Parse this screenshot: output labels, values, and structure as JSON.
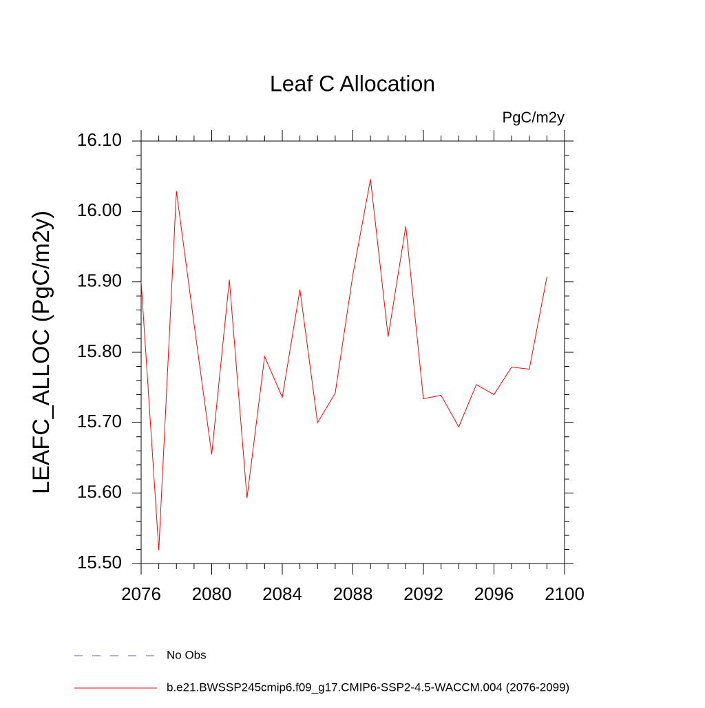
{
  "chart_data": {
    "type": "line",
    "title": "Leaf C Allocation",
    "units": "PgC/m2y",
    "y_label": "LEAFC_ALLOC  (PgC/m2y)",
    "x": [
      2076,
      2077,
      2078,
      2079,
      2080,
      2081,
      2082,
      2083,
      2084,
      2085,
      2086,
      2087,
      2088,
      2089,
      2090,
      2091,
      2092,
      2093,
      2094,
      2095,
      2096,
      2097,
      2098,
      2099
    ],
    "series": [
      {
        "name": "b.e21.BWSSP245cmip6.f09_g17.CMIP6-SSP2-4.5-WACCM.004 (2076-2099)",
        "color": "#ff0000",
        "values": [
          15.9,
          15.519,
          16.029,
          15.84,
          15.655,
          15.903,
          15.593,
          15.794,
          15.736,
          15.889,
          15.7,
          15.742,
          15.91,
          16.046,
          15.822,
          15.979,
          15.734,
          15.739,
          15.694,
          15.754,
          15.74,
          15.779,
          15.776,
          15.907
        ]
      }
    ],
    "obs_legend": {
      "name": "No Obs",
      "color": "#6a5acd",
      "dashed": true
    },
    "xlim": [
      2076,
      2100
    ],
    "ylim": [
      15.5,
      16.1
    ],
    "xticks": [
      2076,
      2080,
      2084,
      2088,
      2092,
      2096,
      2100
    ],
    "xminorticks": [
      2077,
      2078,
      2079,
      2081,
      2082,
      2083,
      2085,
      2086,
      2087,
      2089,
      2090,
      2091,
      2093,
      2094,
      2095,
      2097,
      2098,
      2099
    ],
    "yticks": [
      {
        "value": 15.5,
        "label": "15.50"
      },
      {
        "value": 15.6,
        "label": "15.60"
      },
      {
        "value": 15.7,
        "label": "15.70"
      },
      {
        "value": 15.8,
        "label": "15.80"
      },
      {
        "value": 15.9,
        "label": "15.90"
      },
      {
        "value": 16.0,
        "label": "16.00"
      },
      {
        "value": 16.1,
        "label": "16.10"
      }
    ],
    "yminorticks": [
      15.52,
      15.54,
      15.56,
      15.58,
      15.62,
      15.64,
      15.66,
      15.68,
      15.72,
      15.74,
      15.76,
      15.78,
      15.82,
      15.84,
      15.86,
      15.88,
      15.92,
      15.94,
      15.96,
      15.98,
      16.02,
      16.04,
      16.06,
      16.08
    ]
  }
}
